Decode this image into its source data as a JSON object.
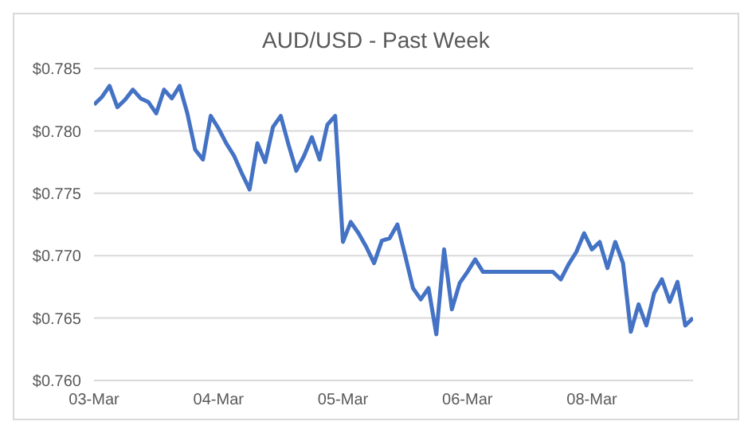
{
  "chart_data": {
    "type": "line",
    "title": "AUD/USD - Past Week",
    "categories": [
      "03-Mar",
      null,
      null,
      null,
      null,
      null,
      null,
      null,
      null,
      null,
      null,
      null,
      null,
      null,
      null,
      null,
      "04-Mar",
      null,
      null,
      null,
      null,
      null,
      null,
      null,
      null,
      null,
      null,
      null,
      null,
      null,
      null,
      null,
      "05-Mar",
      null,
      null,
      null,
      null,
      null,
      null,
      null,
      null,
      null,
      null,
      null,
      null,
      null,
      null,
      null,
      "06-Mar",
      null,
      null,
      null,
      null,
      null,
      null,
      null,
      null,
      null,
      null,
      null,
      null,
      null,
      null,
      null,
      "08-Mar",
      null,
      null,
      null,
      null,
      null,
      null,
      null,
      null,
      null,
      null,
      null,
      null,
      null
    ],
    "series": [
      {
        "color": "#4472c4",
        "values": [
          0.7821,
          0.7827,
          0.7836,
          0.7819,
          0.7825,
          0.7833,
          0.7826,
          0.7823,
          0.7814,
          0.7833,
          0.7826,
          0.7836,
          0.7814,
          0.7785,
          0.7777,
          0.7812,
          0.7802,
          0.779,
          0.778,
          0.7766,
          0.7753,
          0.779,
          0.7775,
          0.7803,
          0.7812,
          0.7789,
          0.7768,
          0.778,
          0.7795,
          0.7777,
          0.7805,
          0.7812,
          0.7711,
          0.7727,
          0.7718,
          0.7707,
          0.7694,
          0.7712,
          0.7714,
          0.7725,
          0.77,
          0.7674,
          0.7665,
          0.7674,
          0.7637,
          0.7705,
          0.7657,
          0.7678,
          0.7687,
          0.7697,
          0.7687,
          0.7687,
          0.7687,
          0.7687,
          0.7687,
          0.7687,
          0.7687,
          0.7687,
          0.7687,
          0.7687,
          0.7681,
          0.7693,
          0.7703,
          0.7718,
          0.7705,
          0.7711,
          0.769,
          0.7711,
          0.7694,
          0.7639,
          0.7661,
          0.7644,
          0.767,
          0.7681,
          0.7663,
          0.7679,
          0.7644,
          0.765
        ]
      }
    ],
    "ylim": [
      0.76,
      0.785
    ],
    "yticks": [
      {
        "value": 0.76,
        "label": "$0.760"
      },
      {
        "value": 0.765,
        "label": "$0.765"
      },
      {
        "value": 0.77,
        "label": "$0.770"
      },
      {
        "value": 0.775,
        "label": "$0.775"
      },
      {
        "value": 0.78,
        "label": "$0.780"
      },
      {
        "value": 0.785,
        "label": "$0.785"
      }
    ],
    "grid": "y"
  }
}
